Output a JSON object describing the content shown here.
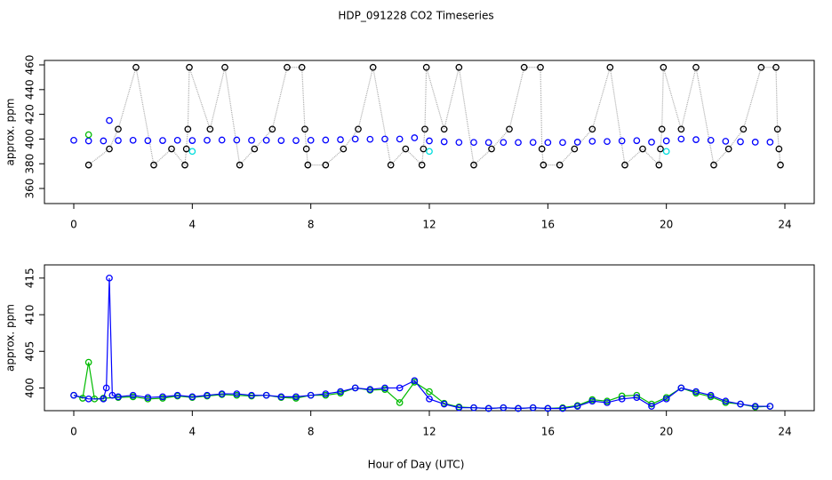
{
  "chart_data": [
    {
      "type": "scatter",
      "title": "HDP_091228  CO2 Timeseries",
      "ylabel": "approx. ppm",
      "xlim": [
        -0.99,
        24.99
      ],
      "ylim": [
        347.8,
        463.6
      ],
      "xticks": [
        0,
        4,
        8,
        12,
        16,
        20,
        24
      ],
      "yticks": [
        360,
        380,
        400,
        420,
        440,
        460
      ],
      "series": [
        {
          "color": "#000000",
          "line_color": "#aaaaaa",
          "x": [
            0.5,
            1.2,
            1.5,
            2.1,
            2.7,
            3.3,
            3.75,
            3.8,
            3.85,
            3.9,
            4.6,
            5.1,
            5.6,
            6.1,
            6.7,
            7.2,
            7.7,
            7.8,
            7.85,
            7.9,
            8.5,
            9.1,
            9.6,
            10.1,
            10.7,
            11.2,
            11.75,
            11.8,
            11.85,
            11.9,
            12.5,
            13,
            13.5,
            14.1,
            14.7,
            15.2,
            15.75,
            15.8,
            15.85,
            16.4,
            16.9,
            17.5,
            18.1,
            18.6,
            19.2,
            19.75,
            19.8,
            19.85,
            19.9,
            20.5,
            21,
            21.6,
            22.1,
            22.6,
            23.2,
            23.7,
            23.75,
            23.8,
            23.85
          ],
          "values": [
            379,
            392,
            408,
            458,
            379,
            392,
            379,
            392,
            408,
            458,
            408,
            458,
            379,
            392,
            408,
            458,
            458,
            408,
            392,
            379,
            379,
            392,
            408,
            458,
            379,
            392,
            379,
            392,
            408,
            458,
            408,
            458,
            379,
            392,
            408,
            458,
            458,
            392,
            379,
            379,
            392,
            408,
            458,
            379,
            392,
            379,
            392,
            408,
            458,
            408,
            458,
            379,
            392,
            408,
            458,
            458,
            408,
            392,
            379
          ]
        },
        {
          "color": "#0000ff",
          "x": [
            0,
            0.5,
            1,
            1.2,
            1.5,
            2,
            2.5,
            3,
            3.5,
            4,
            4.5,
            5,
            5.5,
            6,
            6.5,
            7,
            7.5,
            8,
            8.5,
            9,
            9.5,
            10,
            10.5,
            11,
            11.5,
            12,
            12.5,
            13,
            13.5,
            14,
            14.5,
            15,
            15.5,
            16,
            16.5,
            17,
            17.5,
            18,
            18.5,
            19,
            19.5,
            20,
            20.5,
            21,
            21.5,
            22,
            22.5,
            23,
            23.5
          ],
          "values": [
            399,
            398.5,
            398.5,
            415,
            398.8,
            399,
            398.7,
            398.8,
            399,
            398.8,
            399,
            399.2,
            399.2,
            399,
            399,
            398.8,
            398.8,
            399,
            399.2,
            399.5,
            400,
            399.8,
            400,
            400,
            401,
            398.5,
            397.8,
            397.3,
            397.3,
            397.2,
            397.3,
            397.2,
            397.3,
            397.2,
            397.2,
            397.5,
            398.2,
            398,
            398.5,
            398.7,
            397.5,
            398.5,
            400,
            399.5,
            399,
            398.2,
            397.8,
            397.5,
            397.5
          ]
        },
        {
          "color": "#00bb00",
          "x": [
            0.5
          ],
          "values": [
            403.5
          ]
        },
        {
          "color": "#00dddd",
          "x": [
            4,
            12,
            20
          ],
          "values": [
            390,
            390,
            390
          ]
        }
      ]
    },
    {
      "type": "line",
      "ylabel": "approx. ppm",
      "xlabel": "Hour of Day (UTC)",
      "xlim": [
        -0.99,
        24.99
      ],
      "ylim": [
        396.9,
        416.8
      ],
      "xticks": [
        0,
        4,
        8,
        12,
        16,
        20,
        24
      ],
      "yticks": [
        400,
        405,
        410,
        415
      ],
      "series": [
        {
          "color": "#00bb00",
          "x": [
            0,
            0.3,
            0.5,
            0.7,
            1,
            1.5,
            2,
            2.5,
            3,
            3.5,
            4,
            4.5,
            5,
            5.5,
            6,
            6.5,
            7,
            7.5,
            8,
            8.5,
            9,
            9.5,
            10,
            10.5,
            11,
            11.5,
            12,
            12.5,
            13,
            13.5,
            14,
            14.5,
            15,
            15.5,
            16,
            16.5,
            17,
            17.5,
            18,
            18.5,
            19,
            19.5,
            20,
            20.5,
            21,
            21.5,
            22,
            22.5,
            23,
            23.5
          ],
          "values": [
            399,
            398.6,
            403.5,
            398.5,
            398.6,
            398.7,
            398.8,
            398.5,
            398.6,
            398.9,
            398.7,
            398.9,
            399.1,
            399,
            398.9,
            399,
            398.7,
            398.6,
            399,
            399,
            399.3,
            400,
            399.7,
            399.8,
            398,
            400.8,
            399.5,
            397.9,
            397.4,
            397.3,
            397.2,
            397.3,
            397.2,
            397.3,
            397.2,
            397.3,
            397.6,
            398.4,
            398.2,
            398.9,
            399,
            397.8,
            398.7,
            400,
            399.3,
            398.8,
            398,
            397.8,
            397.4,
            397.5
          ]
        },
        {
          "color": "#0000ff",
          "x": [
            0,
            0.5,
            1,
            1.1,
            1.2,
            1.3,
            1.5,
            2,
            2.5,
            3,
            3.5,
            4,
            4.5,
            5,
            5.5,
            6,
            6.5,
            7,
            7.5,
            8,
            8.5,
            9,
            9.5,
            10,
            10.5,
            11,
            11.5,
            12,
            12.5,
            13,
            13.5,
            14,
            14.5,
            15,
            15.5,
            16,
            16.5,
            17,
            17.5,
            18,
            18.5,
            19,
            19.5,
            20,
            20.5,
            21,
            21.5,
            22,
            22.5,
            23,
            23.5
          ],
          "values": [
            399,
            398.5,
            398.5,
            400,
            415,
            399,
            398.8,
            399,
            398.7,
            398.8,
            399,
            398.8,
            399,
            399.2,
            399.2,
            399,
            399,
            398.8,
            398.8,
            399,
            399.2,
            399.5,
            400,
            399.8,
            400,
            400,
            401,
            398.5,
            397.8,
            397.3,
            397.3,
            397.2,
            397.3,
            397.2,
            397.3,
            397.2,
            397.2,
            397.5,
            398.2,
            398,
            398.5,
            398.7,
            397.5,
            398.5,
            400,
            399.5,
            399,
            398.2,
            397.8,
            397.5,
            397.5
          ]
        }
      ]
    }
  ]
}
